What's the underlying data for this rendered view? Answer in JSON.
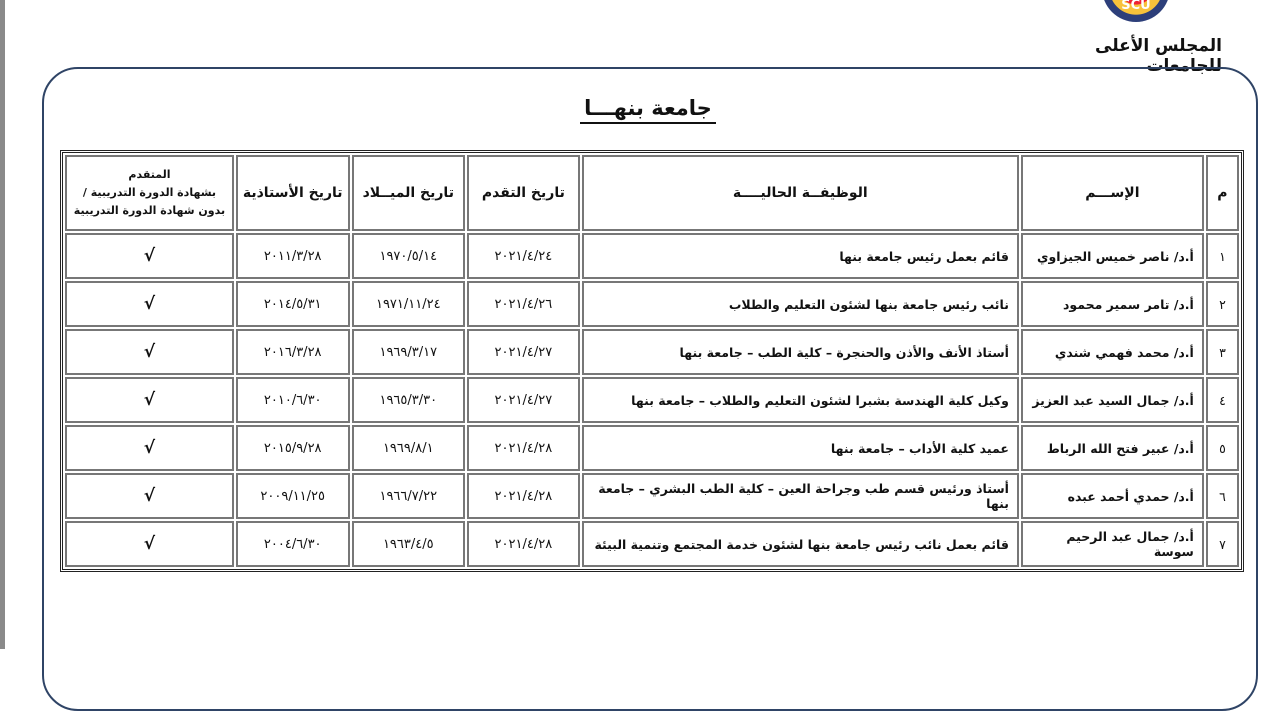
{
  "header": {
    "logo_text": "SCU",
    "council_name": "المجلس الأعلى للجامعات"
  },
  "title": "جامعة بنهـــا",
  "table": {
    "columns": [
      "م",
      "الإســـم",
      "الوظيفــة الحاليــــة",
      "تاريخ التقدم",
      "تاريخ الميــلاد",
      "تاريخ الأستاذية",
      "المتقدم بشهادة الدورة التدريبية / بدون شهادة الدورة التدريبية"
    ],
    "col7_lines": [
      "المتقدم",
      "بشهادة الدورة التدريبية /",
      "بدون شهادة الدورة التدريبية"
    ],
    "rows": [
      {
        "no": "١",
        "name": "أ.د/ ناصر خميس الجيزاوي",
        "job": "قائم بعمل رئيس جامعة بنها",
        "applied": "٢٠٢١/٤/٢٤",
        "birth": "١٩٧٠/٥/١٤",
        "professorship": "٢٠١١/٣/٢٨",
        "certificate": "√"
      },
      {
        "no": "٢",
        "name": "أ.د/ تامر سمير محمود",
        "job": "نائب رئيس جامعة بنها لشئون التعليم والطلاب",
        "applied": "٢٠٢١/٤/٢٦",
        "birth": "١٩٧١/١١/٢٤",
        "professorship": "٢٠١٤/٥/٣١",
        "certificate": "√"
      },
      {
        "no": "٣",
        "name": "أ.د/ محمد فهمي شندي",
        "job": "أستاذ الأنف والأذن والحنجرة – كلية الطب – جامعة بنها",
        "applied": "٢٠٢١/٤/٢٧",
        "birth": "١٩٦٩/٣/١٧",
        "professorship": "٢٠١٦/٣/٢٨",
        "certificate": "√"
      },
      {
        "no": "٤",
        "name": "أ.د/ جمال السيد عبد العزيز",
        "job": "وكيل كلية الهندسة بشبرا لشئون التعليم والطلاب – جامعة بنها",
        "applied": "٢٠٢١/٤/٢٧",
        "birth": "١٩٦٥/٣/٣٠",
        "professorship": "٢٠١٠/٦/٣٠",
        "certificate": "√"
      },
      {
        "no": "٥",
        "name": "أ.د/ عبير فتح الله الرباط",
        "job": "عميد كلية الأداب – جامعة بنها",
        "applied": "٢٠٢١/٤/٢٨",
        "birth": "١٩٦٩/٨/١",
        "professorship": "٢٠١٥/٩/٢٨",
        "certificate": "√"
      },
      {
        "no": "٦",
        "name": "أ.د/ حمدي أحمد عبده",
        "job": "أستاذ ورئيس قسم طب وجراحة العين – كلية الطب البشري – جامعة بنها",
        "applied": "٢٠٢١/٤/٢٨",
        "birth": "١٩٦٦/٧/٢٢",
        "professorship": "٢٠٠٩/١١/٢٥",
        "certificate": "√"
      },
      {
        "no": "٧",
        "name": "أ.د/ جمال عبد الرحيم سوسة",
        "job": "قائم بعمل نائب رئيس جامعة بنها لشئون خدمة المجتمع وتنمية البيئة",
        "applied": "٢٠٢١/٤/٢٨",
        "birth": "١٩٦٣/٤/٥",
        "professorship": "٢٠٠٤/٦/٣٠",
        "certificate": "√"
      }
    ]
  }
}
